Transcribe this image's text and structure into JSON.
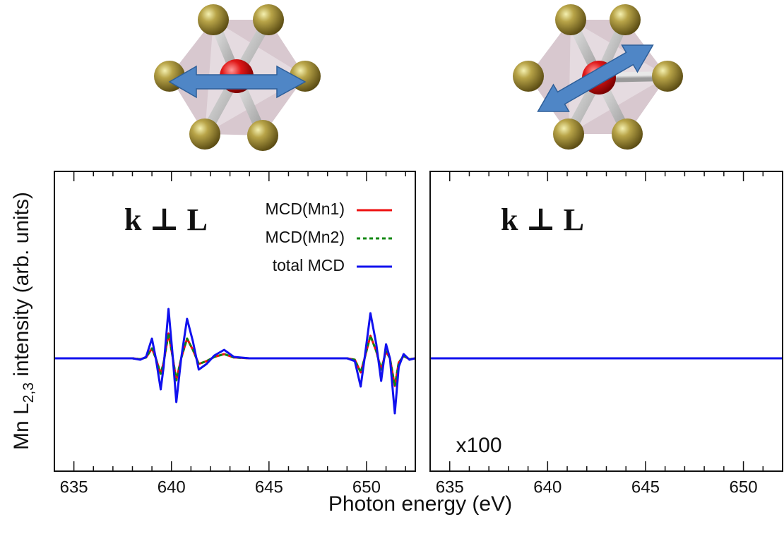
{
  "figure": {
    "ylabel": {
      "main": "Mn L",
      "sub": "2,3",
      "rest": " intensity (arb. units)"
    },
    "xlabel": "Photon energy (eV)"
  },
  "chart_data": [
    {
      "type": "line",
      "x": [
        634,
        638,
        638.4,
        638.7,
        639,
        639.2,
        639.45,
        639.6,
        639.85,
        640.05,
        640.25,
        640.5,
        640.8,
        641.1,
        641.4,
        641.8,
        642.2,
        642.7,
        643.2,
        644,
        649,
        649.4,
        649.7,
        649.9,
        650.2,
        650.5,
        650.75,
        651,
        651.2,
        651.45,
        651.65,
        651.9,
        652.2,
        652.5
      ],
      "series": [
        {
          "name": "MCD(Mn1)",
          "color": "#ee1111",
          "dash": false,
          "values": [
            0,
            0,
            -0.03,
            0.03,
            0.35,
            0,
            -0.55,
            -0.15,
            0.88,
            0.1,
            -0.78,
            0,
            0.7,
            0.3,
            -0.2,
            -0.1,
            0.05,
            0.15,
            0.03,
            0,
            0,
            -0.05,
            -0.5,
            0,
            0.8,
            0.25,
            -0.4,
            0.25,
            0,
            -0.98,
            -0.15,
            0.08,
            -0.03,
            0
          ]
        },
        {
          "name": "MCD(Mn2)",
          "color": "#118811",
          "dash": true,
          "values": [
            0,
            0,
            -0.03,
            0.03,
            0.35,
            0,
            -0.55,
            -0.15,
            0.88,
            0.1,
            -0.78,
            0,
            0.7,
            0.3,
            -0.2,
            -0.1,
            0.05,
            0.15,
            0.03,
            0,
            0,
            -0.05,
            -0.5,
            0,
            0.8,
            0.25,
            -0.4,
            0.25,
            0,
            -0.98,
            -0.15,
            0.08,
            -0.03,
            0
          ]
        },
        {
          "name": "total MCD",
          "color": "#1111ee",
          "dash": false,
          "values": [
            0,
            0,
            -0.05,
            0.05,
            0.7,
            0,
            -1.1,
            -0.3,
            1.75,
            0.2,
            -1.55,
            0,
            1.4,
            0.6,
            -0.4,
            -0.2,
            0.1,
            0.3,
            0.05,
            0,
            0,
            -0.1,
            -1,
            0,
            1.6,
            0.5,
            -0.8,
            0.5,
            0,
            -1.95,
            -0.3,
            0.15,
            -0.05,
            0
          ]
        }
      ],
      "xlim": [
        634,
        652.5
      ],
      "ylim": [
        -4,
        6.625
      ],
      "xticks": [
        635,
        640,
        645,
        650
      ],
      "minor_xticks": [
        634,
        636,
        637,
        638,
        639,
        641,
        642,
        643,
        644,
        646,
        647,
        648,
        649,
        651,
        652
      ],
      "annotations": [
        "k ⊥ L"
      ],
      "legend": "top right"
    },
    {
      "type": "line",
      "x": [
        634,
        652
      ],
      "series": [
        {
          "color": "#ee1111",
          "dash": false,
          "values": [
            0,
            0
          ]
        },
        {
          "color": "#118811",
          "dash": true,
          "values": [
            0,
            0
          ]
        },
        {
          "color": "#1111ee",
          "dash": false,
          "values": [
            0,
            0
          ]
        }
      ],
      "xlim": [
        634,
        652
      ],
      "ylim": [
        -4,
        6.625
      ],
      "xticks": [
        635,
        640,
        645,
        650
      ],
      "minor_xticks": [
        634,
        636,
        637,
        638,
        639,
        641,
        642,
        643,
        644,
        646,
        647,
        648,
        649,
        651
      ],
      "annotations": [
        "k ⊥ L",
        "x100"
      ]
    }
  ]
}
